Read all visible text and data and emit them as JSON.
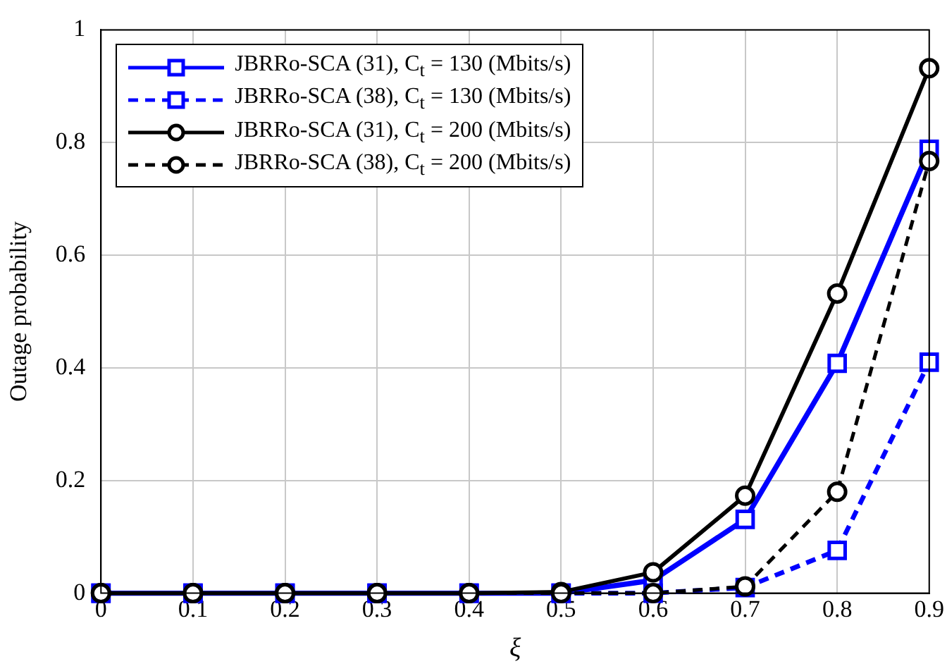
{
  "chart_data": {
    "type": "line",
    "xlabel": "ξ",
    "ylabel": "Outage probability",
    "x": [
      0,
      0.1,
      0.2,
      0.3,
      0.4,
      0.5,
      0.6,
      0.7,
      0.8,
      0.9
    ],
    "xlim": [
      0,
      0.9
    ],
    "xticks": [
      0,
      0.1,
      0.2,
      0.3,
      0.4,
      0.5,
      0.6,
      0.7,
      0.8,
      0.9
    ],
    "ylim": [
      0,
      1
    ],
    "yticks": [
      0,
      0.2,
      0.4,
      0.6,
      0.8,
      1
    ],
    "grid": true,
    "legend": "top left",
    "series": [
      {
        "name": "JBRRo-SCA (31), C$_{t}$ = 130 (Mbits/s)",
        "color": "#0000ff",
        "marker": "square",
        "line_style": "solid",
        "values": [
          0,
          0,
          0,
          0,
          0,
          0,
          0.023,
          0.131,
          0.408,
          0.788
        ]
      },
      {
        "name": "JBRRo-SCA (38), C$_{t}$ = 130 (Mbits/s)",
        "color": "#0000ff",
        "marker": "square",
        "line_style": "dashed",
        "values": [
          0,
          0,
          0,
          0,
          0,
          0,
          0,
          0.01,
          0.076,
          0.41
        ]
      },
      {
        "name": "JBRRo-SCA (31), C$_{t}$ = 200 (Mbits/s)",
        "color": "#000000",
        "marker": "circle",
        "line_style": "solid",
        "values": [
          0,
          0,
          0,
          0,
          0,
          0.002,
          0.037,
          0.173,
          0.532,
          0.932
        ]
      },
      {
        "name": "JBRRo-SCA (38), C$_{t}$ = 200 (Mbits/s)",
        "color": "#000000",
        "marker": "circle",
        "line_style": "dashed",
        "values": [
          0,
          0,
          0,
          0,
          0,
          0,
          0,
          0.012,
          0.18,
          0.767
        ]
      }
    ]
  }
}
